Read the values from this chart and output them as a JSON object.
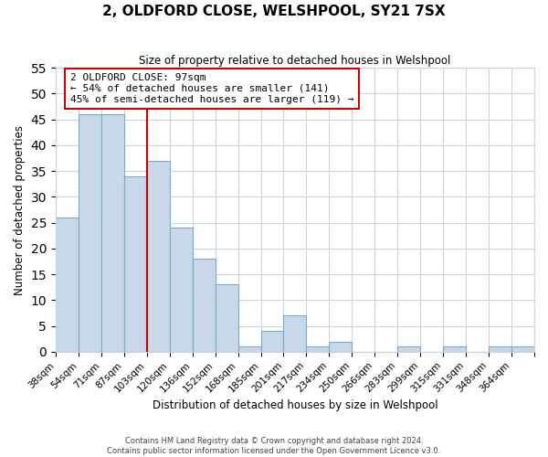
{
  "title": "2, OLDFORD CLOSE, WELSHPOOL, SY21 7SX",
  "subtitle": "Size of property relative to detached houses in Welshpool",
  "xlabel": "Distribution of detached houses by size in Welshpool",
  "ylabel": "Number of detached properties",
  "bin_labels": [
    "38sqm",
    "54sqm",
    "71sqm",
    "87sqm",
    "103sqm",
    "120sqm",
    "136sqm",
    "152sqm",
    "168sqm",
    "185sqm",
    "201sqm",
    "217sqm",
    "234sqm",
    "250sqm",
    "266sqm",
    "283sqm",
    "299sqm",
    "315sqm",
    "331sqm",
    "348sqm",
    "364sqm"
  ],
  "bar_values": [
    26,
    46,
    46,
    34,
    37,
    24,
    18,
    13,
    1,
    4,
    7,
    1,
    2,
    0,
    0,
    1,
    0,
    1,
    0,
    1,
    1
  ],
  "bar_color": "#c8d8ea",
  "bar_edge_color": "#7aaac8",
  "vline_x": 4,
  "vline_color": "#cc0000",
  "annotation_line1": "2 OLDFORD CLOSE: 97sqm",
  "annotation_line2": "← 54% of detached houses are smaller (141)",
  "annotation_line3": "45% of semi-detached houses are larger (119) →",
  "annotation_box_color": "#ffffff",
  "annotation_box_edge": "#cc0000",
  "ylim": [
    0,
    55
  ],
  "yticks": [
    0,
    5,
    10,
    15,
    20,
    25,
    30,
    35,
    40,
    45,
    50,
    55
  ],
  "footer_line1": "Contains HM Land Registry data © Crown copyright and database right 2024.",
  "footer_line2": "Contains public sector information licensed under the Open Government Licence v3.0.",
  "background_color": "#ffffff",
  "grid_color": "#c8d4e0"
}
